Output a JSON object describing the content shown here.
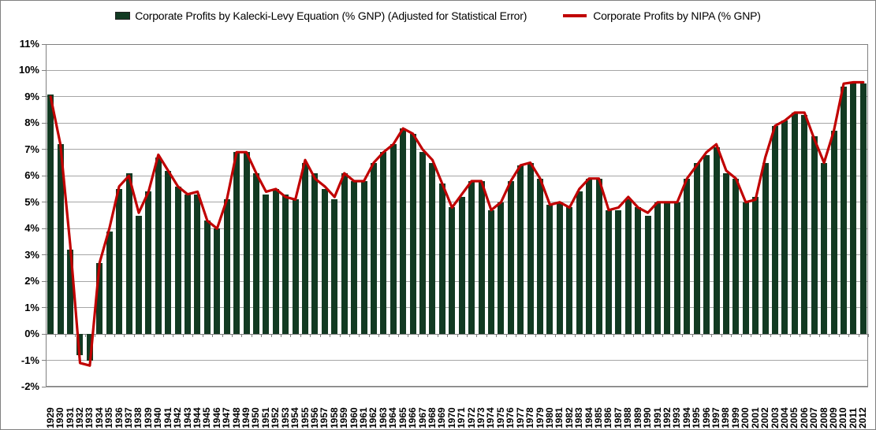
{
  "legend": {
    "kalecki_label": "Corporate Profits by Kalecki-Levy Equation (% GNP) (Adjusted for Statistical Error)",
    "nipa_label": "Corporate Profits by NIPA (% GNP)"
  },
  "colors": {
    "bar_green": "#123A22",
    "line_red": "#C00000",
    "gridline_gray": "#A6A6A6",
    "axis_gray": "#808080",
    "background": "#FFFFFF"
  },
  "chart_data": {
    "type": "bar",
    "title": "",
    "xlabel": "",
    "ylabel": "",
    "ylim": [
      -2,
      11
    ],
    "grid": "horizontal",
    "legend_position": "top-center",
    "y_ticks": [
      "11%",
      "10%",
      "9%",
      "8%",
      "7%",
      "6%",
      "5%",
      "4%",
      "3%",
      "2%",
      "1%",
      "0%",
      "-1%",
      "-2%"
    ],
    "y_tick_values": [
      11,
      10,
      9,
      8,
      7,
      6,
      5,
      4,
      3,
      2,
      1,
      0,
      -1,
      -2
    ],
    "categories": [
      "1929",
      "1930",
      "1931",
      "1932",
      "1933",
      "1934",
      "1935",
      "1936",
      "1937",
      "1938",
      "1939",
      "1940",
      "1941",
      "1942",
      "1943",
      "1944",
      "1945",
      "1946",
      "1947",
      "1948",
      "1949",
      "1950",
      "1951",
      "1952",
      "1953",
      "1954",
      "1955",
      "1956",
      "1957",
      "1958",
      "1959",
      "1960",
      "1961",
      "1962",
      "1963",
      "1964",
      "1965",
      "1966",
      "1967",
      "1968",
      "1969",
      "1970",
      "1971",
      "1972",
      "1973",
      "1974",
      "1975",
      "1976",
      "1977",
      "1978",
      "1979",
      "1980",
      "1981",
      "1982",
      "1983",
      "1984",
      "1985",
      "1986",
      "1987",
      "1988",
      "1989",
      "1990",
      "1991",
      "1992",
      "1993",
      "1994",
      "1995",
      "1996",
      "1997",
      "1998",
      "1999",
      "2000",
      "2001",
      "2002",
      "2003",
      "2004",
      "2005",
      "2006",
      "2007",
      "2008",
      "2009",
      "2010",
      "2011",
      "2012"
    ],
    "series": [
      {
        "name": "Corporate Profits by Kalecki-Levy Equation (% GNP) (Adjusted for Statistical Error)",
        "type": "bar",
        "values": [
          9.1,
          7.2,
          3.2,
          -0.8,
          -1.0,
          2.7,
          3.9,
          5.5,
          6.1,
          4.5,
          5.4,
          6.7,
          6.2,
          5.6,
          5.3,
          5.3,
          4.3,
          4.0,
          5.1,
          6.9,
          6.9,
          6.1,
          5.3,
          5.5,
          5.3,
          5.1,
          6.5,
          6.1,
          5.5,
          5.1,
          6.1,
          5.8,
          5.8,
          6.5,
          6.9,
          7.2,
          7.8,
          7.6,
          6.9,
          6.5,
          5.7,
          4.8,
          5.2,
          5.8,
          5.8,
          4.7,
          5.0,
          5.8,
          6.4,
          6.5,
          5.9,
          4.9,
          5.0,
          4.8,
          5.4,
          5.9,
          5.9,
          4.7,
          4.7,
          5.1,
          4.8,
          4.5,
          5.0,
          5.0,
          5.0,
          5.9,
          6.5,
          6.8,
          7.1,
          6.1,
          5.9,
          5.0,
          5.2,
          6.5,
          7.9,
          8.1,
          8.4,
          8.3,
          7.5,
          6.5,
          7.7,
          9.4,
          9.5,
          9.5
        ]
      },
      {
        "name": "Corporate Profits by NIPA (% GNP)",
        "type": "line",
        "values": [
          9.0,
          7.2,
          3.4,
          -1.1,
          -1.2,
          2.7,
          4.0,
          5.6,
          6.0,
          4.6,
          5.4,
          6.8,
          6.2,
          5.6,
          5.3,
          5.4,
          4.3,
          4.0,
          5.1,
          6.9,
          6.9,
          6.1,
          5.4,
          5.5,
          5.2,
          5.1,
          6.6,
          5.9,
          5.6,
          5.2,
          6.1,
          5.8,
          5.8,
          6.5,
          6.9,
          7.2,
          7.8,
          7.6,
          7.0,
          6.6,
          5.7,
          4.8,
          5.3,
          5.8,
          5.8,
          4.7,
          5.0,
          5.8,
          6.4,
          6.5,
          5.9,
          4.9,
          5.0,
          4.8,
          5.5,
          5.9,
          5.9,
          4.7,
          4.8,
          5.2,
          4.8,
          4.6,
          5.0,
          5.0,
          5.0,
          5.9,
          6.4,
          6.9,
          7.2,
          6.2,
          5.9,
          5.0,
          5.1,
          6.7,
          7.9,
          8.1,
          8.4,
          8.4,
          7.4,
          6.5,
          7.7,
          9.5,
          9.55,
          9.55
        ]
      }
    ]
  }
}
